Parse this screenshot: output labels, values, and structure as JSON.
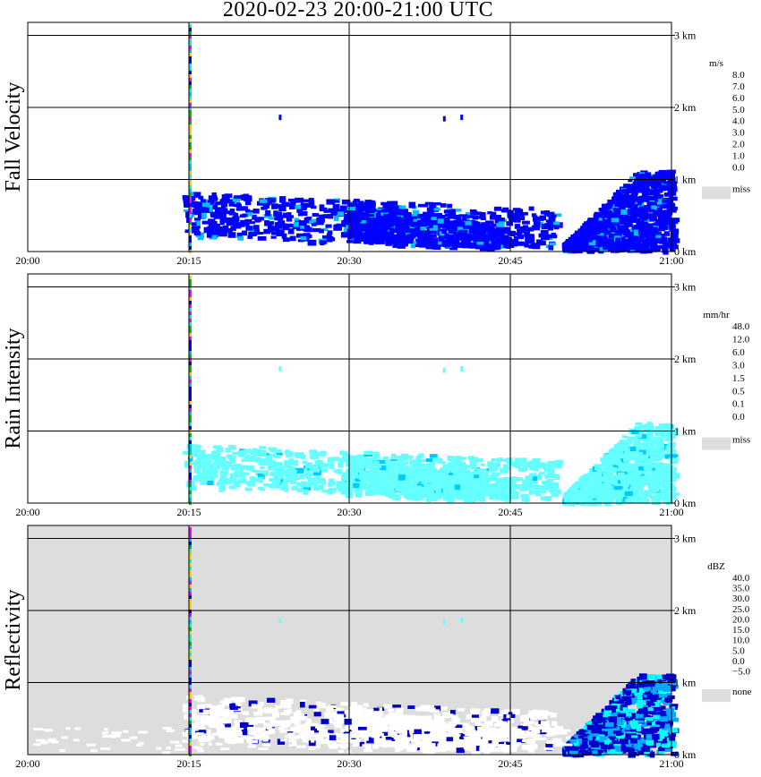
{
  "title": "2020-02-23  20:00-21:00 UTC",
  "x_ticks": [
    "20:00",
    "20:15",
    "20:30",
    "20:45",
    "21:00"
  ],
  "alt_ticks": [
    "3 km",
    "2 km",
    "1 km",
    "0 km"
  ],
  "chart_data": [
    {
      "type": "heatmap",
      "title": "Fall Velocity",
      "xlim": [
        "20:00",
        "21:00"
      ],
      "ylim_km": [
        0,
        3.2
      ],
      "grid": true,
      "legend": {
        "unit": "m/s",
        "placement": "right",
        "labels": [
          "8.0",
          "7.0",
          "6.0",
          "5.0",
          "4.0",
          "3.0",
          "2.0",
          "1.0",
          "0.0"
        ],
        "colors": [
          "#ff00ff",
          "#ff0000",
          "#ff7f00",
          "#ffcc00",
          "#bfff00",
          "#00c000",
          "#00ffcc",
          "#00bfff",
          "#0000ff"
        ],
        "missing": {
          "label": "miss",
          "color": "#dddddd"
        }
      }
    },
    {
      "type": "heatmap",
      "title": "Rain Intensity",
      "xlim": [
        "20:00",
        "21:00"
      ],
      "ylim_km": [
        0,
        3.2
      ],
      "grid": true,
      "legend": {
        "unit": "mm/hr",
        "placement": "right",
        "labels": [
          "48.0",
          "12.0",
          "6.0",
          "3.0",
          "1.5",
          "0.5",
          "0.1",
          "0.0"
        ],
        "colors": [
          "#000000",
          "#550044",
          "#aa0099",
          "#dd00dd",
          "#ff00aa",
          "#ff0000",
          "#ff8800",
          "#ffcc00",
          "#ffff00",
          "#99ff33",
          "#33cc33",
          "#0000ff",
          "#0077ff",
          "#00ccff",
          "#66ffff",
          "#ffffff"
        ],
        "missing": {
          "label": "miss",
          "color": "#dddddd"
        }
      }
    },
    {
      "type": "heatmap",
      "title": "Reflectivity",
      "xlim": [
        "20:00",
        "21:00"
      ],
      "ylim_km": [
        0,
        3.2
      ],
      "grid": true,
      "legend": {
        "unit": "dBZ",
        "placement": "right",
        "labels": [
          "40.0",
          "35.0",
          "30.0",
          "25.0",
          "20.0",
          "15.0",
          "10.0",
          "5.0",
          "0.0",
          "−5.0"
        ],
        "colors": [
          "#aa44aa",
          "#dd00dd",
          "#aa00aa",
          "#ff0000",
          "#ff6600",
          "#ffcc00",
          "#ffff00",
          "#00bb00",
          "#00ffff",
          "#00aaff",
          "#0000cc"
        ],
        "missing": {
          "label": "none",
          "color": "#dddddd"
        }
      }
    }
  ]
}
